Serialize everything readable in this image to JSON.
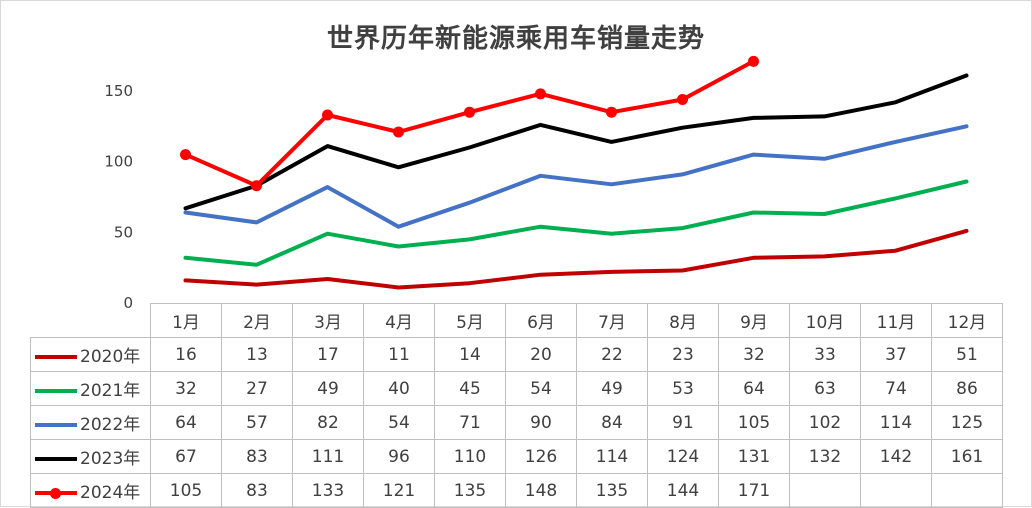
{
  "chart_data": {
    "type": "line",
    "title": "世界历年新能源乘用车销量走势",
    "categories": [
      "1月",
      "2月",
      "3月",
      "4月",
      "5月",
      "6月",
      "7月",
      "8月",
      "9月",
      "10月",
      "11月",
      "12月"
    ],
    "ylim": [
      0,
      170
    ],
    "yticks": [
      "0",
      "50",
      "100",
      "150"
    ],
    "grid": false,
    "legend": "data-table",
    "series": [
      {
        "name": "2020年",
        "color": "#c00000",
        "marker": false,
        "values": [
          16,
          13,
          17,
          11,
          14,
          20,
          22,
          23,
          32,
          33,
          37,
          51
        ]
      },
      {
        "name": "2021年",
        "color": "#00b050",
        "marker": false,
        "values": [
          32,
          27,
          49,
          40,
          45,
          54,
          49,
          53,
          64,
          63,
          74,
          86
        ]
      },
      {
        "name": "2022年",
        "color": "#4472c4",
        "marker": false,
        "values": [
          64,
          57,
          82,
          54,
          71,
          90,
          84,
          91,
          105,
          102,
          114,
          125
        ]
      },
      {
        "name": "2023年",
        "color": "#000000",
        "marker": false,
        "values": [
          67,
          83,
          111,
          96,
          110,
          126,
          114,
          124,
          131,
          132,
          142,
          161
        ]
      },
      {
        "name": "2024年",
        "color": "#ff0000",
        "marker": true,
        "values": [
          105,
          83,
          133,
          121,
          135,
          148,
          135,
          144,
          171,
          null,
          null,
          null
        ]
      }
    ]
  }
}
